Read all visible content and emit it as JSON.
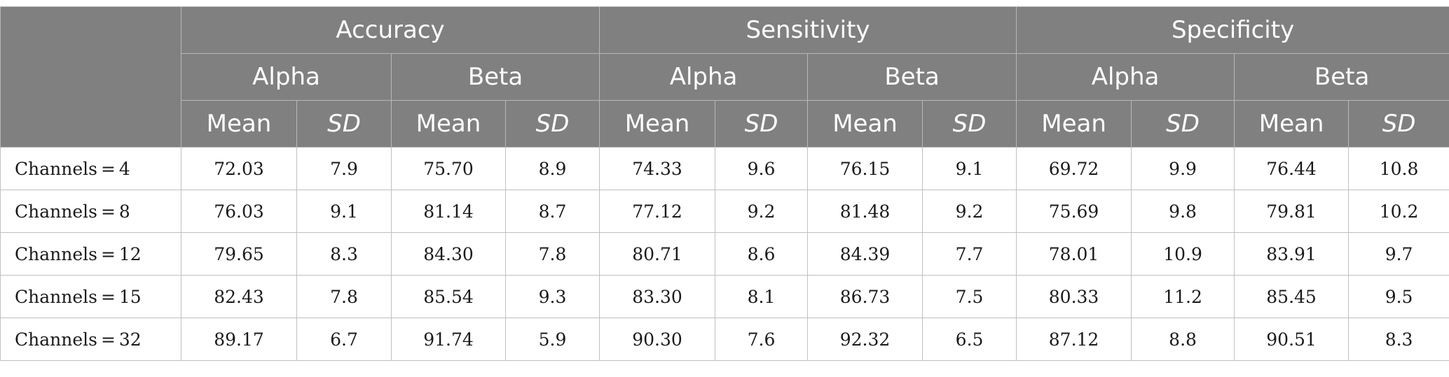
{
  "metrics": [
    "Accuracy",
    "Sensitivity",
    "Specificity"
  ],
  "bands": [
    "Alpha",
    "Beta"
  ],
  "stats": [
    "Mean",
    "SD"
  ],
  "rows": [
    {
      "label": "Channels = 4",
      "values": [
        "72.03",
        "7.9",
        "75.70",
        "8.9",
        "74.33",
        "9.6",
        "76.15",
        "9.1",
        "69.72",
        "9.9",
        "76.44",
        "10.8"
      ]
    },
    {
      "label": "Channels = 8",
      "values": [
        "76.03",
        "9.1",
        "81.14",
        "8.7",
        "77.12",
        "9.2",
        "81.48",
        "9.2",
        "75.69",
        "9.8",
        "79.81",
        "10.2"
      ]
    },
    {
      "label": "Channels = 12",
      "values": [
        "79.65",
        "8.3",
        "84.30",
        "7.8",
        "80.71",
        "8.6",
        "84.39",
        "7.7",
        "78.01",
        "10.9",
        "83.91",
        "9.7"
      ]
    },
    {
      "label": "Channels = 15",
      "values": [
        "82.43",
        "7.8",
        "85.54",
        "9.3",
        "83.30",
        "8.1",
        "86.73",
        "7.5",
        "80.33",
        "11.2",
        "85.45",
        "9.5"
      ]
    },
    {
      "label": "Channels = 32",
      "values": [
        "89.17",
        "6.7",
        "91.74",
        "5.9",
        "90.30",
        "7.6",
        "92.32",
        "6.5",
        "87.12",
        "8.8",
        "90.51",
        "8.3"
      ]
    }
  ]
}
